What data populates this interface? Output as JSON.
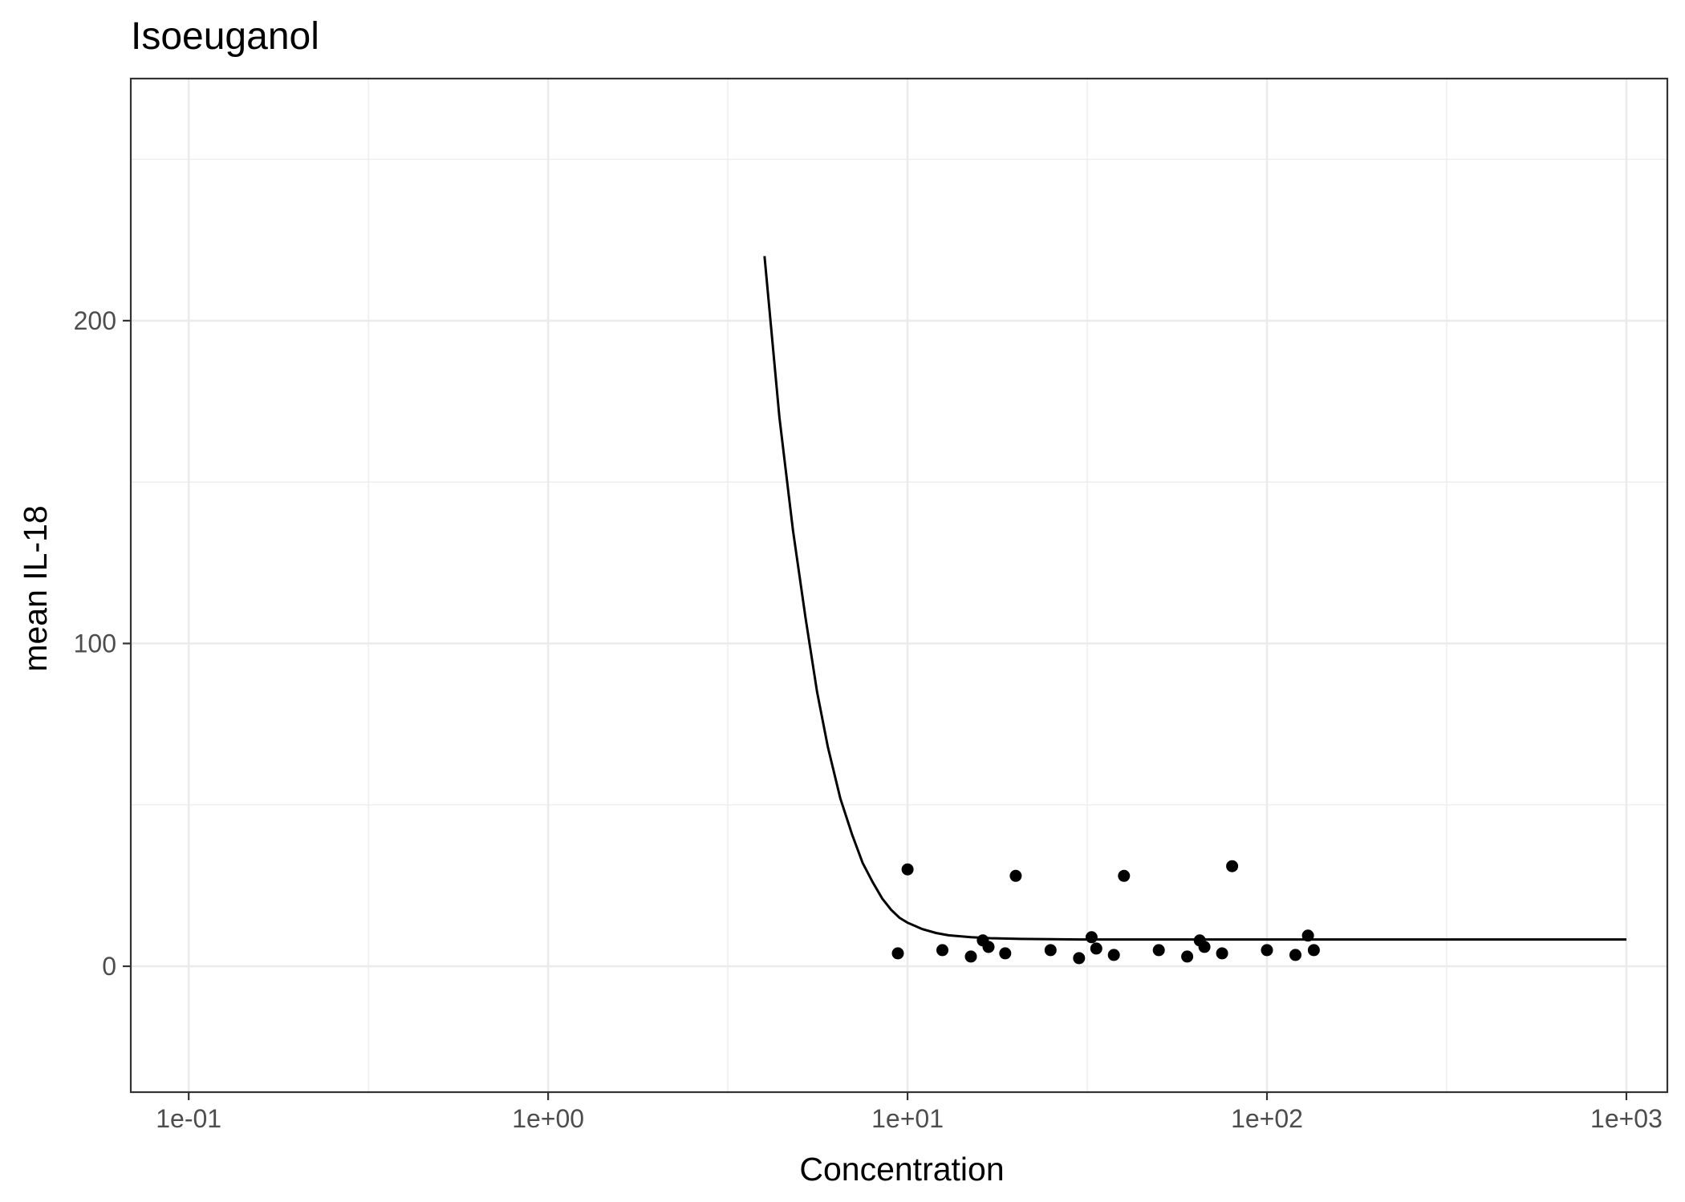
{
  "chart_data": {
    "type": "scatter",
    "title": "Isoeuganol",
    "xlabel": "Concentration",
    "ylabel": "mean IL-18",
    "x_scale": "log10",
    "xlim": [
      0.069,
      1300
    ],
    "ylim": [
      -39,
      275
    ],
    "x_ticks": [
      0.1,
      1,
      10,
      100,
      1000
    ],
    "x_tick_labels": [
      "1e-01",
      "1e+00",
      "1e+01",
      "1e+02",
      "1e+03"
    ],
    "y_ticks": [
      0,
      100,
      200
    ],
    "y_tick_labels": [
      "0",
      "100",
      "200"
    ],
    "grid": true,
    "legend": "none",
    "colors": {
      "points": "#000000",
      "curve": "#000000",
      "grid": "#ebebeb",
      "panel_border": "#333333"
    },
    "points": [
      {
        "x": 9.4,
        "y": 4
      },
      {
        "x": 10,
        "y": 30
      },
      {
        "x": 12.5,
        "y": 5
      },
      {
        "x": 15,
        "y": 3
      },
      {
        "x": 16.2,
        "y": 8
      },
      {
        "x": 16.8,
        "y": 6
      },
      {
        "x": 18.7,
        "y": 4
      },
      {
        "x": 20,
        "y": 28
      },
      {
        "x": 25,
        "y": 5
      },
      {
        "x": 30,
        "y": 2.5
      },
      {
        "x": 32.5,
        "y": 9
      },
      {
        "x": 33.5,
        "y": 5.5
      },
      {
        "x": 37.5,
        "y": 3.5
      },
      {
        "x": 40,
        "y": 28
      },
      {
        "x": 50,
        "y": 5
      },
      {
        "x": 60,
        "y": 3
      },
      {
        "x": 65,
        "y": 8
      },
      {
        "x": 67,
        "y": 6
      },
      {
        "x": 75,
        "y": 4
      },
      {
        "x": 80,
        "y": 31
      },
      {
        "x": 100,
        "y": 5
      },
      {
        "x": 120,
        "y": 3.5
      },
      {
        "x": 130,
        "y": 9.5
      },
      {
        "x": 135,
        "y": 5
      }
    ],
    "fit_curve": {
      "x": [
        4.0,
        4.4,
        4.8,
        5.2,
        5.6,
        6.0,
        6.5,
        7.0,
        7.5,
        8.0,
        8.5,
        9.0,
        9.5,
        10,
        11,
        12,
        13,
        15,
        17,
        20,
        25,
        30,
        40,
        50,
        70,
        100,
        150,
        200,
        300,
        500,
        700,
        1000
      ],
      "y": [
        220,
        170,
        135,
        108,
        85,
        68,
        52,
        41,
        32,
        26,
        21,
        17.5,
        15,
        13.5,
        11.5,
        10.3,
        9.6,
        9.0,
        8.7,
        8.5,
        8.4,
        8.3,
        8.3,
        8.3,
        8.3,
        8.3,
        8.3,
        8.3,
        8.3,
        8.3,
        8.3,
        8.3
      ]
    }
  }
}
